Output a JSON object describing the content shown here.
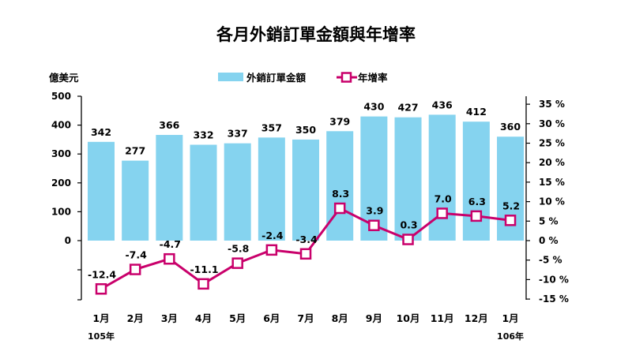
{
  "chart_data": {
    "type": "bar+line",
    "title": "各月外銷訂單金額與年增率",
    "ylabel_left": "億美元",
    "categories": [
      "1月",
      "2月",
      "3月",
      "4月",
      "5月",
      "6月",
      "7月",
      "8月",
      "9月",
      "10月",
      "11月",
      "12月",
      "1月"
    ],
    "year_labels": [
      {
        "index": 0,
        "text": "105年"
      },
      {
        "index": 12,
        "text": "106年"
      }
    ],
    "series": [
      {
        "name": "外銷訂單金額",
        "type": "bar",
        "axis": "left",
        "color": "#85D3EF",
        "values": [
          342,
          277,
          366,
          332,
          337,
          357,
          350,
          379,
          430,
          427,
          436,
          412,
          360
        ]
      },
      {
        "name": "年增率",
        "type": "line",
        "axis": "right",
        "color": "#C9006B",
        "values": [
          -12.4,
          -7.4,
          -4.7,
          -11.1,
          -5.8,
          -2.4,
          -3.4,
          8.3,
          3.9,
          0.3,
          7.0,
          6.3,
          5.2
        ]
      }
    ],
    "left_axis": {
      "ticks": [
        0,
        100,
        200,
        300,
        400,
        500
      ],
      "tick_labels": [
        "0",
        "100",
        "200",
        "300",
        "400",
        "500"
      ]
    },
    "right_axis": {
      "ticks": [
        -15,
        -10,
        -5,
        0,
        5,
        10,
        15,
        20,
        25,
        30,
        35
      ],
      "tick_labels": [
        "-15 %",
        "-10 %",
        "-5 %",
        "0 %",
        "5 %",
        "10 %",
        "15 %",
        "20 %",
        "25 %",
        "30 %",
        "35 %"
      ]
    },
    "bar_labels": [
      "342",
      "277",
      "366",
      "332",
      "337",
      "357",
      "350",
      "379",
      "430",
      "427",
      "436",
      "412",
      "360"
    ],
    "line_labels": [
      "-12.4",
      "-7.4",
      "-4.7",
      "-11.1",
      "-5.8",
      "-2.4",
      "-3.4",
      "8.3",
      "3.9",
      "0.3",
      "7.0",
      "6.3",
      "5.2"
    ],
    "legend_position": "top",
    "grid": false
  }
}
